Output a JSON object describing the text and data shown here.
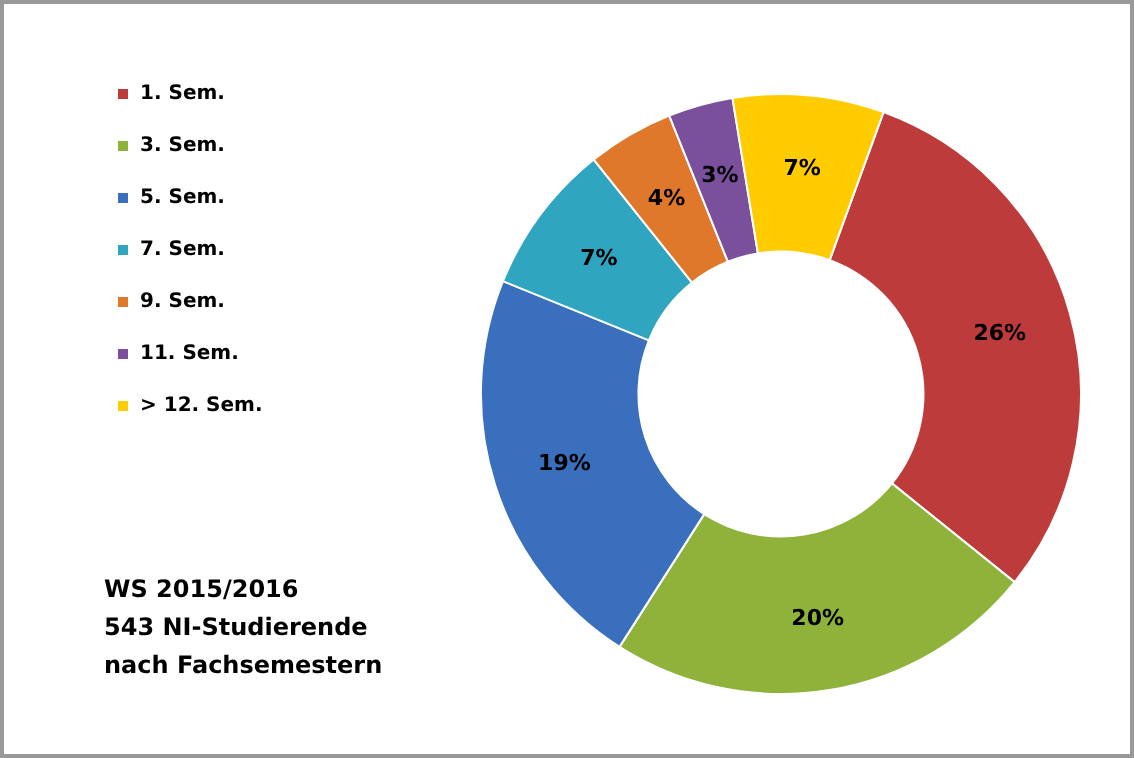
{
  "chart_data": {
    "type": "donut",
    "title": "WS 2015/2016\n543 NI-Studierende\nnach Fachsemestern",
    "categories": [
      "1. Sem.",
      "3. Sem.",
      "5. Sem.",
      "7. Sem.",
      "9. Sem.",
      "11. Sem.",
      "> 12. Sem."
    ],
    "values": [
      26,
      20,
      19,
      7,
      4,
      3,
      7
    ],
    "value_labels": [
      "26%",
      "20%",
      "19%",
      "7%",
      "4%",
      "3%",
      "7%"
    ],
    "colors": [
      "#be3b3b",
      "#8fb33a",
      "#3a6fbe",
      "#2fa5c0",
      "#e0782b",
      "#7a4f9c",
      "#ffcc00"
    ],
    "legend": "left"
  }
}
